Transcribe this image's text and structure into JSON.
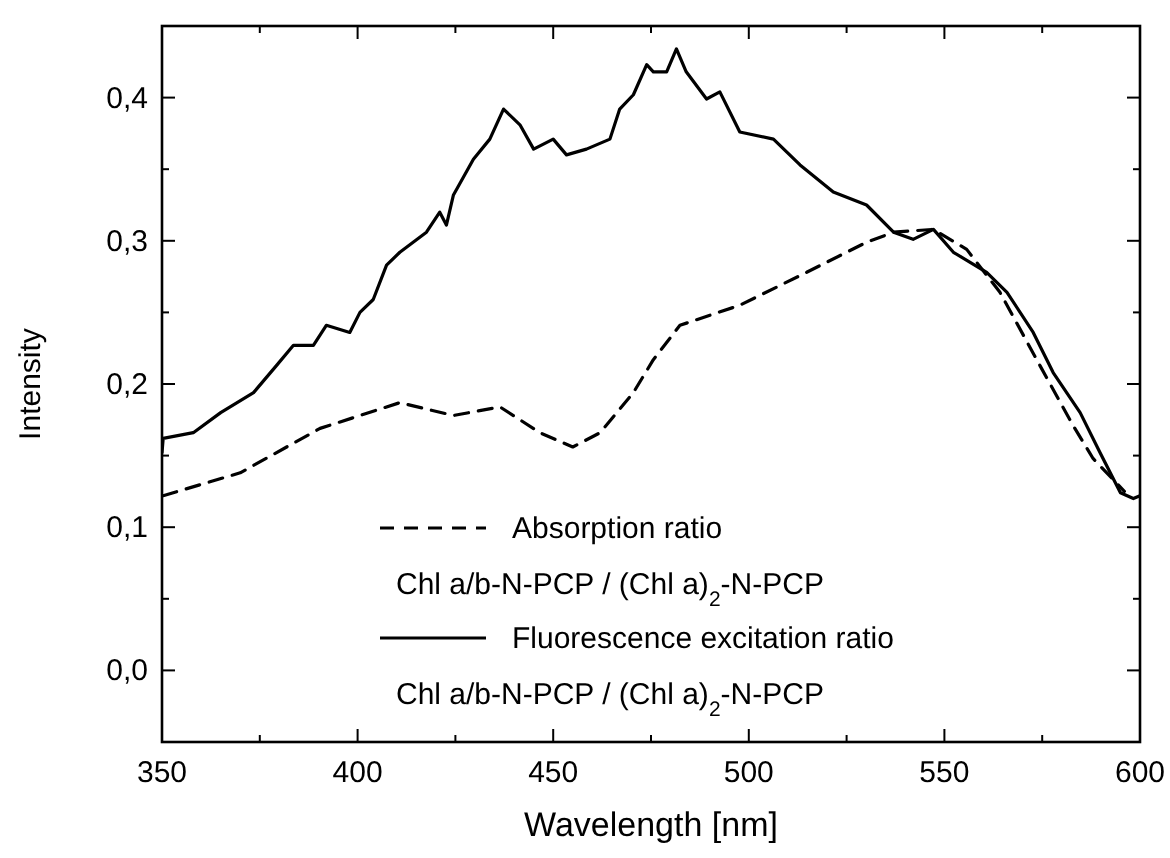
{
  "chart_data": {
    "type": "line",
    "xlabel": "Wavelength [nm]",
    "ylabel": "Intensity",
    "xlim": [
      350,
      600
    ],
    "xticks": [
      350,
      {
        "value": 375,
        "label": null
      },
      400,
      {
        "value": 425,
        "label": null
      },
      450,
      {
        "value": 475,
        "label": null
      },
      500,
      {
        "value": 525,
        "label": null
      },
      550,
      {
        "value": 575,
        "label": null
      },
      600
    ],
    "ylim": [
      -0.05,
      0.45
    ],
    "yticks": [
      {
        "value": 0,
        "label": "0,0"
      },
      {
        "value": 0.05,
        "label": null
      },
      {
        "value": 0.1,
        "label": "0,1"
      },
      {
        "value": 0.15,
        "label": null
      },
      {
        "value": 0.2,
        "label": "0,2"
      },
      {
        "value": 0.25,
        "label": null
      },
      {
        "value": 0.3,
        "label": "0,3"
      },
      {
        "value": 0.35,
        "label": null
      },
      {
        "value": 0.4,
        "label": "0,4"
      }
    ],
    "grid": false,
    "legend": "bottom",
    "series": [
      {
        "name": "Absorption ratio\nChl a/b-N-PCP / (Chl a)$_{2}$-N-PCP",
        "color": "#000000",
        "line_style": "dashed",
        "x": [
          350.3,
          370,
          390.4,
          410.8,
          424.5,
          436.4,
          446.6,
          455,
          462,
          470.5,
          475.6,
          482.4,
          497.7,
          514.8,
          530.1,
          537,
          547.2,
          555.7,
          564.2,
          574.4,
          582.9,
          588,
          596
        ],
        "values": [
          0.122,
          0.138,
          0.169,
          0.187,
          0.178,
          0.184,
          0.166,
          0.156,
          0.166,
          0.194,
          0.217,
          0.241,
          0.255,
          0.278,
          0.299,
          0.306,
          0.308,
          0.294,
          0.264,
          0.213,
          0.171,
          0.148,
          0.125
        ]
      },
      {
        "name": "Fluorescence excitation ratio\nChl a/b-N-PCP / (Chl a)$_{2}$-N-PCP",
        "color": "#000000",
        "line_style": "solid",
        "x": [
          350,
          350.3,
          358,
          365,
          373.4,
          379.3,
          383.6,
          388.7,
          392,
          398,
          400.6,
          404,
          407.4,
          410.8,
          417.6,
          421,
          422.7,
          424.5,
          429.6,
          433.8,
          437.3,
          441.5,
          445,
          450,
          453.4,
          458.5,
          464.5,
          467,
          470.5,
          473.9,
          475.6,
          479,
          481.5,
          484,
          489.2,
          492.6,
          497.7,
          506.3,
          513.1,
          521.6,
          530.1,
          537,
          542,
          547.2,
          552.3,
          560.8,
          566,
          572.7,
          577.8,
          584.7,
          589.8,
          595,
          598.3,
          600
        ],
        "values": [
          0.152,
          0.162,
          0.166,
          0.18,
          0.194,
          0.213,
          0.227,
          0.227,
          0.241,
          0.236,
          0.25,
          0.259,
          0.283,
          0.292,
          0.306,
          0.32,
          0.311,
          0.332,
          0.357,
          0.371,
          0.392,
          0.381,
          0.364,
          0.371,
          0.36,
          0.364,
          0.371,
          0.392,
          0.402,
          0.423,
          0.418,
          0.418,
          0.434,
          0.418,
          0.399,
          0.404,
          0.376,
          0.371,
          0.353,
          0.334,
          0.325,
          0.306,
          0.301,
          0.308,
          0.292,
          0.278,
          0.264,
          0.236,
          0.208,
          0.18,
          0.152,
          0.124,
          0.12,
          0.122
        ]
      }
    ]
  }
}
